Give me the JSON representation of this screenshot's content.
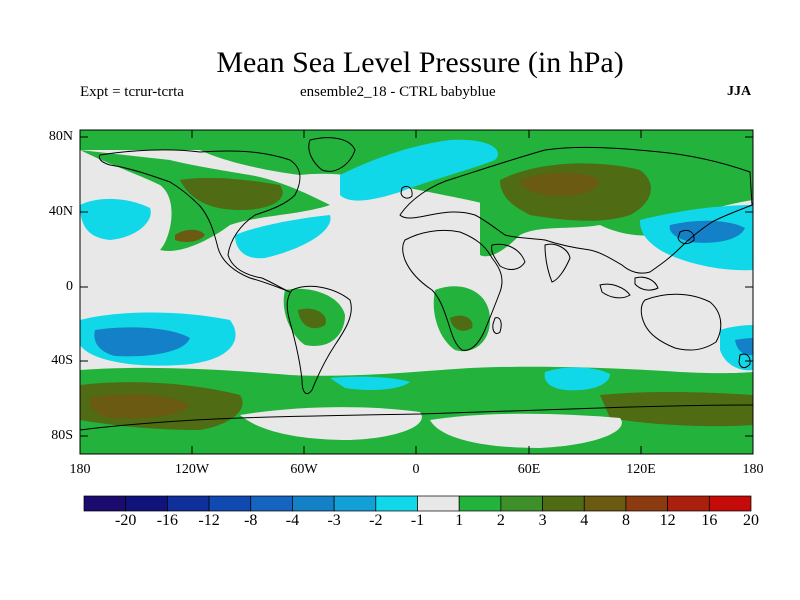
{
  "title": "Mean Sea Level Pressure (in hPa)",
  "subtitle_left": "Expt = tcrur-tcrta",
  "subtitle_center": "ensemble2_18 - CTRL babyblue",
  "subtitle_right": "JJA",
  "lat_labels": [
    "80N",
    "40N",
    "0",
    "40S",
    "80S"
  ],
  "lon_labels": [
    "180",
    "120W",
    "60W",
    "0",
    "60E",
    "120E",
    "180"
  ],
  "colorbar": {
    "labels": [
      "-20",
      "-16",
      "-12",
      "-8",
      "-4",
      "-3",
      "-2",
      "-1",
      "1",
      "2",
      "3",
      "4",
      "8",
      "12",
      "16",
      "20"
    ],
    "colors": [
      "#1b0b6e",
      "#10137a",
      "#0f2f9a",
      "#1049b0",
      "#1565c0",
      "#1480c8",
      "#12a0d6",
      "#11d8e8",
      "#e8e8e8",
      "#23b23c",
      "#3d8f2a",
      "#4f6b13",
      "#6b5a12",
      "#8c3a10",
      "#a9200d",
      "#c50a0a"
    ]
  },
  "map_colors": {
    "land_outline": "#000000",
    "neutral": "#e8e8e8",
    "green": "#23b23c",
    "olive": "#4f6b13",
    "brown": "#6b5a12",
    "cyan": "#11d8e8",
    "blue": "#1480c8",
    "deepblue": "#1565c0"
  }
}
